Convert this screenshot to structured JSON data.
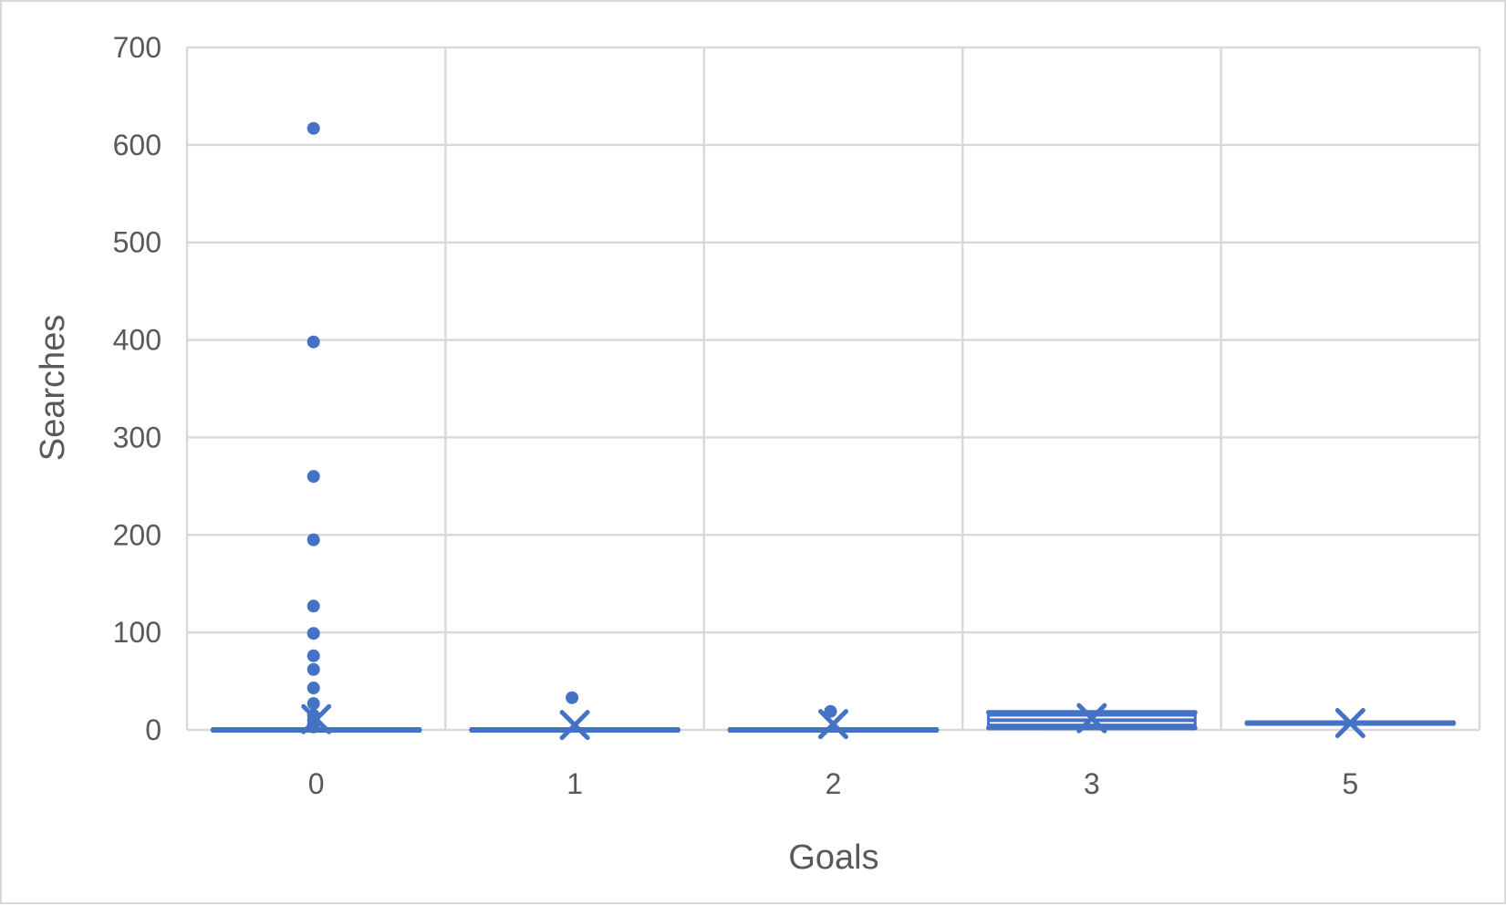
{
  "chart_data": {
    "type": "box",
    "xlabel": "Goals",
    "ylabel": "Searches",
    "ylim": [
      0,
      700
    ],
    "yticks": [
      0,
      100,
      200,
      300,
      400,
      500,
      600,
      700
    ],
    "grid": true,
    "legend": "none",
    "categories": [
      "0",
      "1",
      "2",
      "3",
      "5"
    ],
    "boxes": [
      {
        "category": "0",
        "min": 0,
        "q1": 0,
        "median": 0,
        "q3": 0,
        "max": 0,
        "mean": 11,
        "outliers": [
          617,
          398,
          260,
          195,
          127,
          99,
          76,
          62,
          43,
          27,
          15,
          10,
          6,
          3
        ]
      },
      {
        "category": "1",
        "min": 0,
        "q1": 0,
        "median": 0,
        "q3": 0,
        "max": 0,
        "mean": 5,
        "outliers": [
          33
        ]
      },
      {
        "category": "2",
        "min": 0,
        "q1": 0,
        "median": 0,
        "q3": 0,
        "max": 0,
        "mean": 6,
        "outliers": [
          19
        ]
      },
      {
        "category": "3",
        "min": 2,
        "q1": 5,
        "median": 10,
        "q3": 15,
        "max": 18,
        "mean": 12,
        "outliers": []
      },
      {
        "category": "5",
        "min": 7,
        "q1": 7,
        "median": 7,
        "q3": 7,
        "max": 7,
        "mean": 7,
        "outliers": []
      }
    ],
    "series_color": "#4472c4",
    "grid_color": "#d9d9d9",
    "text_color": "#595959"
  }
}
